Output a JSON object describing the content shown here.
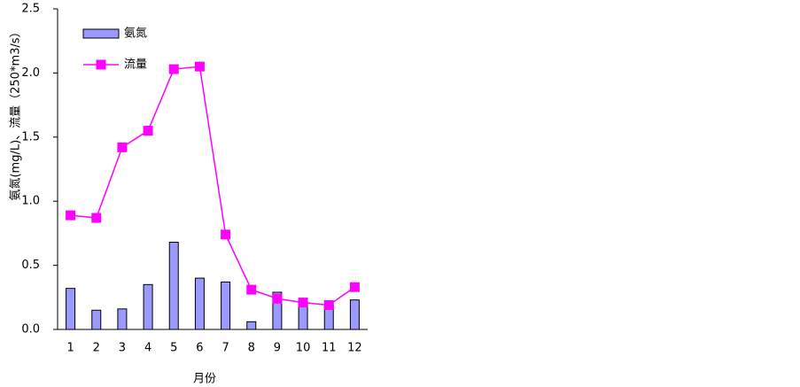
{
  "chart_data": {
    "type": "combo",
    "x_label": "月份",
    "y_label": "氨氮(mg/L)、流量（250*m3/s）",
    "categories": [
      "1",
      "2",
      "3",
      "4",
      "5",
      "6",
      "7",
      "8",
      "9",
      "10",
      "11",
      "12"
    ],
    "series": [
      {
        "name": "氨氮",
        "type": "bar",
        "color": "#9999ff",
        "values": [
          0.32,
          0.15,
          0.16,
          0.35,
          0.68,
          0.4,
          0.37,
          0.06,
          0.29,
          0.22,
          0.19,
          0.23
        ]
      },
      {
        "name": "流量",
        "type": "line",
        "color": "#ff00ff",
        "values": [
          0.89,
          0.87,
          1.42,
          1.55,
          2.03,
          2.05,
          0.74,
          0.31,
          0.24,
          0.21,
          0.19,
          0.33
        ]
      }
    ],
    "ylim": [
      0,
      2.5
    ],
    "yticks": [
      {
        "value": 0,
        "label": "0.0"
      },
      {
        "value": 0.5,
        "label": "0.5"
      },
      {
        "value": 1,
        "label": "1.0"
      },
      {
        "value": 1.5,
        "label": "1.5"
      },
      {
        "value": 2,
        "label": "2.0"
      },
      {
        "value": 2.5,
        "label": "2.5"
      }
    ],
    "grid": false
  }
}
